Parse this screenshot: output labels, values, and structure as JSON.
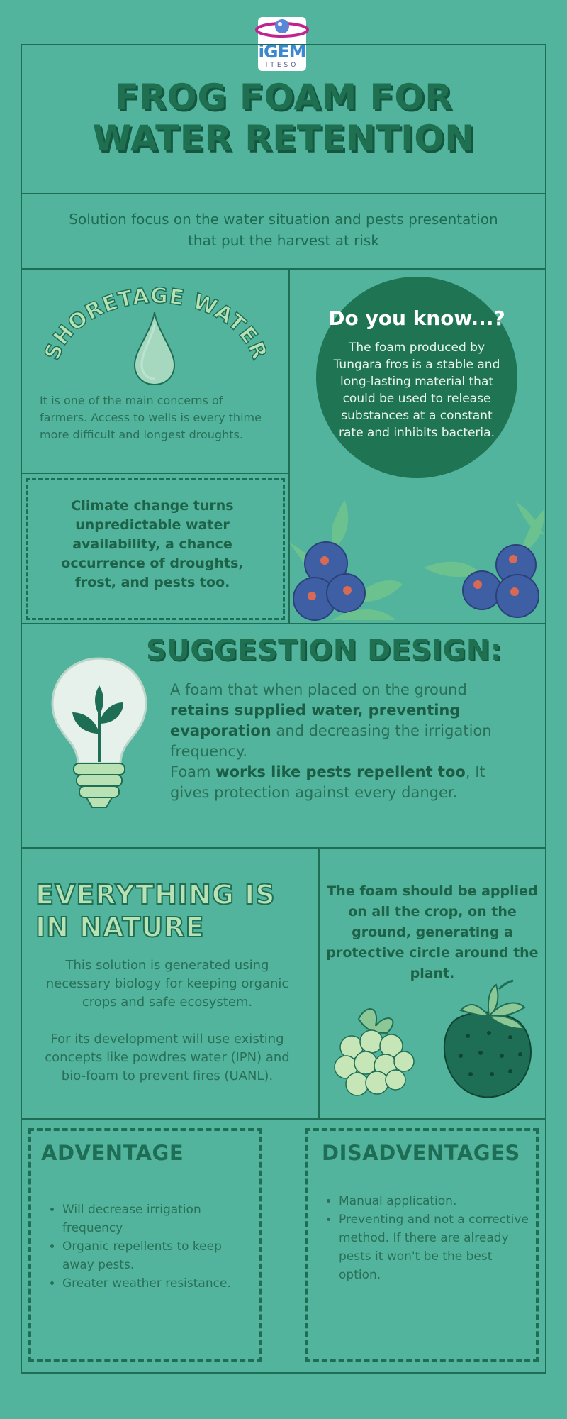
{
  "logo": {
    "main": "iGEM",
    "sub": "ITESO"
  },
  "header": {
    "title_line1": "FROG FOAM FOR",
    "title_line2": "WATER RETENTION",
    "subtitle": "Solution focus on the water situation and pests presentation that put the harvest at risk"
  },
  "shortage": {
    "arc_title": "SHORETAGE WATER",
    "description": "It is one of the main concerns of farmers. Access to wells is every thime more difficult and longest droughts."
  },
  "climate": {
    "text": "Climate change turns unpredictable water availability, a chance occurrence of droughts, frost, and pests too."
  },
  "did_you_know": {
    "title": "Do you know...?",
    "body": "The foam produced by Tungara fros is a stable and long-lasting material that could be used to release substances at a constant rate and inhibits bacteria."
  },
  "suggestion": {
    "title": "SUGGESTION DESIGN:",
    "p1_a": "A foam that when placed on the ground ",
    "p1_b": "retains supplied water, preventing evaporation",
    "p1_c": " and decreasing the irrigation frequency.",
    "p2_a": "Foam ",
    "p2_b": "works like pests repellent too",
    "p2_c": ", It gives protection against every danger."
  },
  "nature": {
    "title_line1": "EVERYTHING IS",
    "title_line2": "IN NATURE",
    "p1": "This solution is generated using necessary biology for keeping organic crops and safe ecosystem.",
    "p2": "For its development will use existing concepts like powdres water (IPN) and bio-foam to prevent fires (UANL)."
  },
  "application": {
    "text": "The foam should be applied on all the crop, on the ground, generating a protective circle around the plant."
  },
  "advantage": {
    "title": "ADVENTAGE",
    "items": [
      "Will decrease irrigation frequency",
      "Organic repellents to keep away pests.",
      "Greater weather resistance."
    ]
  },
  "disadvantage": {
    "title": "DISADVENTAGES",
    "items": [
      "Manual application.",
      "Preventing and not a corrective method. If there are already pests it won't be the best option."
    ]
  },
  "colors": {
    "background": "#52b49d",
    "dark_green": "#1e6e55",
    "circle_green": "#1e7453",
    "light_green": "#b8e2b4",
    "blueberry": "#3f5fa5",
    "logo_magenta": "#c0228f"
  }
}
